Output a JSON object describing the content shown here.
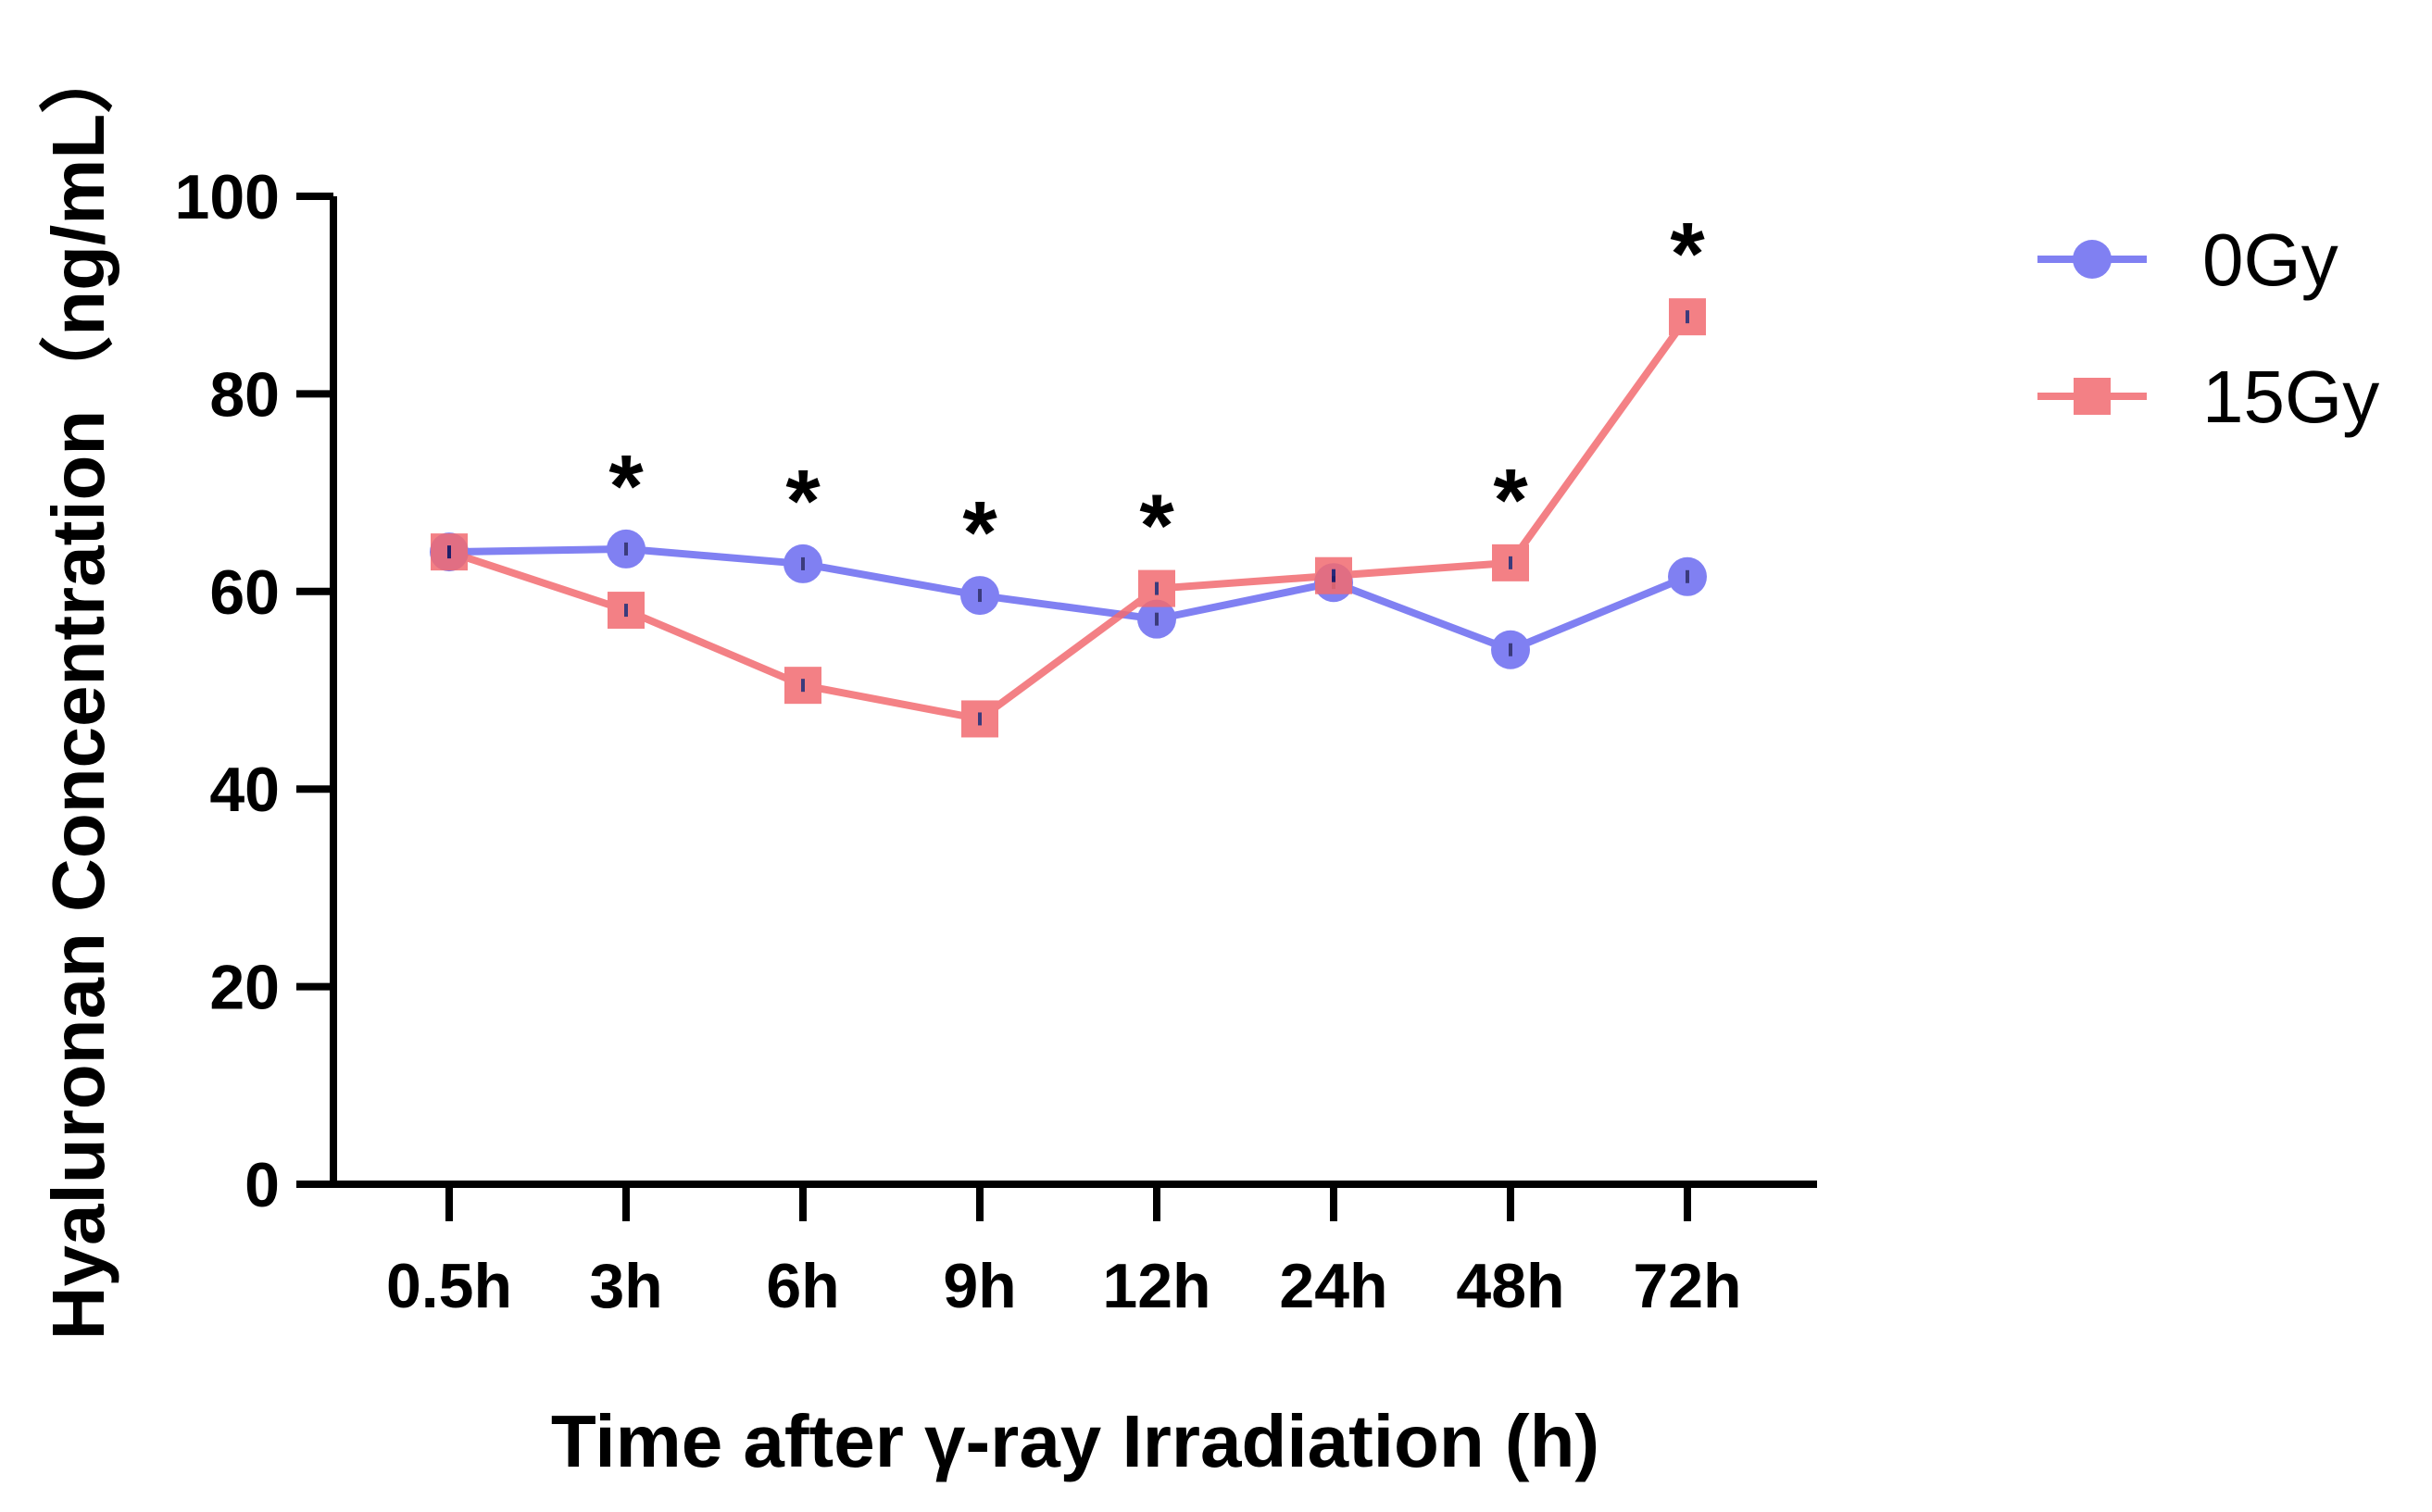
{
  "chart_data": {
    "type": "line",
    "title": "",
    "xlabel": "Time after γ-ray Irradiation (h)",
    "ylabel": "Hyaluronan Concentration（ng/mL）",
    "categories": [
      "0.5h",
      "3h",
      "6h",
      "9h",
      "12h",
      "24h",
      "48h",
      "72h"
    ],
    "ylim": [
      0,
      100
    ],
    "yticks": [
      0,
      20,
      40,
      60,
      80,
      100
    ],
    "grid": false,
    "legend_position": "top-right",
    "series": [
      {
        "name": "0Gy",
        "marker": "circle",
        "color": "#6b6bf0",
        "values": [
          64.0,
          64.3,
          62.8,
          59.6,
          57.2,
          60.9,
          54.1,
          61.5
        ]
      },
      {
        "name": "15Gy",
        "marker": "square",
        "color": "#f26b70",
        "values": [
          64.0,
          58.1,
          50.5,
          47.1,
          60.3,
          61.6,
          62.9,
          87.8
        ]
      }
    ],
    "significance": [
      {
        "category": "3h",
        "label": "*"
      },
      {
        "category": "6h",
        "label": "*"
      },
      {
        "category": "9h",
        "label": "*"
      },
      {
        "category": "12h",
        "label": "*"
      },
      {
        "category": "48h",
        "label": "*"
      },
      {
        "category": "72h",
        "label": "*"
      }
    ]
  }
}
